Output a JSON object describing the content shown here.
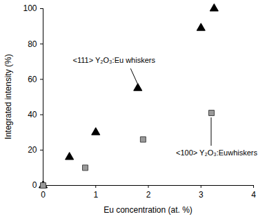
{
  "chart_data": {
    "type": "scatter",
    "x_label": "Eu concentration (at. %)",
    "y_label": "Integrated intensity (%)",
    "xlim": [
      0,
      4
    ],
    "xticks": [
      0,
      1,
      2,
      3,
      4
    ],
    "ylim": [
      0,
      100
    ],
    "yticks": [
      0,
      20,
      40,
      60,
      80,
      100
    ],
    "series": [
      {
        "name": "<111> Y₂O₃:Eu whiskers",
        "color": "#000000",
        "marker": "triangle",
        "x": [
          0,
          0.5,
          1.0,
          1.8,
          3.0,
          3.25
        ],
        "values": [
          0,
          16,
          30,
          55,
          89,
          100
        ]
      },
      {
        "name": "<100> Y₂O₃:Euwhiskers",
        "color": "#999999",
        "marker": "square",
        "x": [
          0,
          0.8,
          1.9,
          3.2
        ],
        "values": [
          0,
          10,
          26,
          41
        ]
      }
    ]
  }
}
